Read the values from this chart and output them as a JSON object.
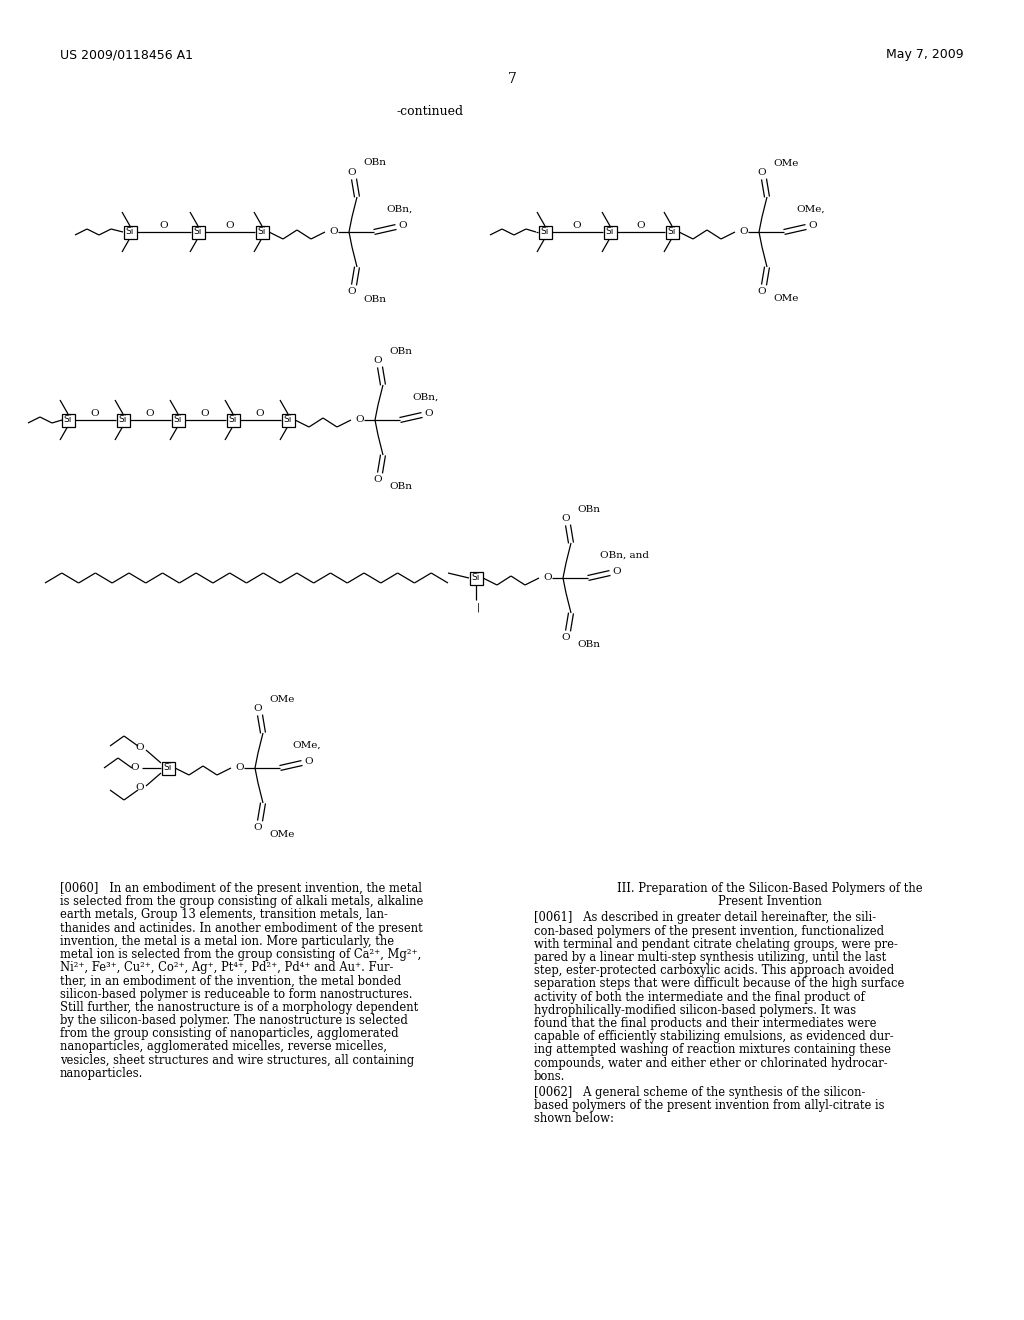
{
  "header_left": "US 2009/0118456 A1",
  "header_right": "May 7, 2009",
  "page_number": "7",
  "continued_label": "-continued",
  "bg_color": "#ffffff",
  "p0060_lines": [
    "[0060]   In an embodiment of the present invention, the metal",
    "is selected from the group consisting of alkali metals, alkaline",
    "earth metals, Group 13 elements, transition metals, lan-",
    "thanides and actinides. In another embodiment of the present",
    "invention, the metal is a metal ion. More particularly, the",
    "metal ion is selected from the group consisting of Ca²⁺, Mg²⁺,",
    "Ni²⁺, Fe³⁺, Cu²⁺, Co²⁺, Ag⁺, Pt⁴⁺, Pd²⁺, Pd⁴⁺ and Au⁺. Fur-",
    "ther, in an embodiment of the invention, the metal bonded",
    "silicon-based polymer is reduceable to form nanostructures.",
    "Still further, the nanostructure is of a morphology dependent",
    "by the silicon-based polymer. The nanostructure is selected",
    "from the group consisting of nanoparticles, agglomerated",
    "nanoparticles, agglomerated micelles, reverse micelles,",
    "vesicles, sheet structures and wire structures, all containing",
    "nanoparticles."
  ],
  "section_heading_1": "III. Preparation of the Silicon-Based Polymers of the",
  "section_heading_2": "Present Invention",
  "p0061_lines": [
    "[0061]   As described in greater detail hereinafter, the sili-",
    "con-based polymers of the present invention, functionalized",
    "with terminal and pendant citrate chelating groups, were pre-",
    "pared by a linear multi-step synthesis utilizing, until the last",
    "step, ester-protected carboxylic acids. This approach avoided",
    "separation steps that were difficult because of the high surface",
    "activity of both the intermediate and the final product of",
    "hydrophilically-modified silicon-based polymers. It was",
    "found that the final products and their intermediates were",
    "capable of efficiently stabilizing emulsions, as evidenced dur-",
    "ing attempted washing of reaction mixtures containing these",
    "compounds, water and either ether or chlorinated hydrocar-",
    "bons."
  ],
  "p0062_lines": [
    "[0062]   A general scheme of the synthesis of the silicon-",
    "based polymers of the present invention from allyl-citrate is",
    "shown below:"
  ]
}
